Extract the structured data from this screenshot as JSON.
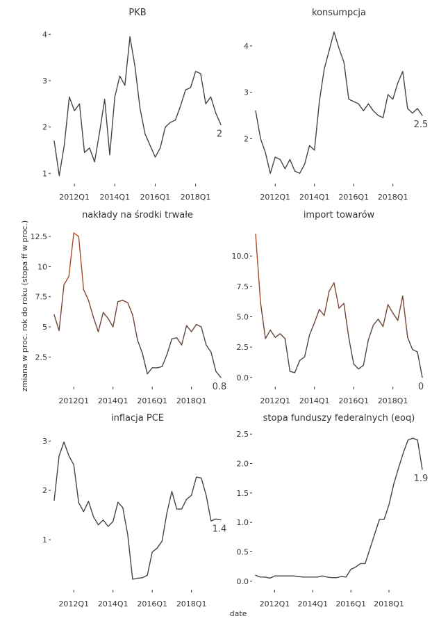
{
  "axis": {
    "xlabel": "date",
    "ylabel": "zmiana w proc. rok do roku (stopa ff w proc.)"
  },
  "chart_data": [
    {
      "type": "line",
      "title": "PKB",
      "x_start": "2011Q1",
      "x_ticks": [
        "2012Q1",
        "2014Q1",
        "2016Q1",
        "2018Q1"
      ],
      "y_ticks": [
        1,
        2,
        3,
        4
      ],
      "ylim": [
        0.9,
        4.2
      ],
      "values": [
        1.7,
        0.95,
        1.6,
        2.65,
        2.35,
        2.5,
        1.45,
        1.55,
        1.25,
        1.9,
        2.6,
        1.4,
        2.65,
        3.1,
        2.9,
        3.95,
        3.3,
        2.4,
        1.85,
        1.6,
        1.35,
        1.55,
        2.0,
        2.1,
        2.15,
        2.45,
        2.8,
        2.85,
        3.2,
        3.15,
        2.5,
        2.65,
        2.3,
        2.05
      ],
      "end_label": "2",
      "color": "#444444",
      "highlight_color": "#444444"
    },
    {
      "type": "line",
      "title": "konsumpcja",
      "x_start": "2011Q1",
      "x_ticks": [
        "2012Q1",
        "2014Q1",
        "2016Q1",
        "2018Q1"
      ],
      "y_ticks": [
        2,
        3,
        4
      ],
      "ylim": [
        1.15,
        4.45
      ],
      "values": [
        2.6,
        2.0,
        1.7,
        1.25,
        1.6,
        1.55,
        1.35,
        1.55,
        1.3,
        1.25,
        1.45,
        1.85,
        1.75,
        2.8,
        3.5,
        3.9,
        4.3,
        3.95,
        3.65,
        2.85,
        2.8,
        2.75,
        2.6,
        2.75,
        2.6,
        2.5,
        2.45,
        2.95,
        2.85,
        3.2,
        3.45,
        2.65,
        2.55,
        2.65,
        2.5
      ],
      "end_label": "2.5",
      "color": "#444444",
      "highlight_color": "#444444"
    },
    {
      "type": "line",
      "title": "nakłady na środki trwałe",
      "x_start": "2011Q1",
      "x_ticks": [
        "2012Q1",
        "2014Q1",
        "2016Q1",
        "2018Q1"
      ],
      "y_ticks": [
        2.5,
        5.0,
        7.5,
        10.0,
        12.5
      ],
      "ylim": [
        0.5,
        13.2
      ],
      "values": [
        6.0,
        4.7,
        8.5,
        9.2,
        12.8,
        12.5,
        8.1,
        7.2,
        5.8,
        4.6,
        6.2,
        5.7,
        5.0,
        7.1,
        7.2,
        7.0,
        6.0,
        3.9,
        2.8,
        1.1,
        1.6,
        1.6,
        1.7,
        2.7,
        4.0,
        4.1,
        3.5,
        5.1,
        4.6,
        5.2,
        5.0,
        3.5,
        2.9,
        1.3,
        0.8
      ],
      "end_label": "0.8",
      "color": "#444444",
      "highlight_color": "#cc4a1a"
    },
    {
      "type": "line",
      "title": "import towarów",
      "x_start": "2011Q1",
      "x_ticks": [
        "2012Q1",
        "2014Q1",
        "2016Q1",
        "2018Q1"
      ],
      "y_ticks": [
        "0.0",
        "2.5",
        "5.0",
        "7.5",
        "10.0"
      ],
      "ylim": [
        -0.3,
        12.3
      ],
      "values": [
        11.8,
        6.2,
        3.2,
        3.9,
        3.3,
        3.6,
        3.2,
        0.5,
        0.4,
        1.4,
        1.7,
        3.5,
        4.5,
        5.6,
        5.1,
        7.1,
        7.8,
        5.7,
        6.1,
        3.3,
        1.1,
        0.7,
        1.0,
        3.1,
        4.3,
        4.8,
        4.2,
        6.0,
        5.3,
        4.7,
        6.7,
        3.3,
        2.3,
        2.1,
        0.0
      ],
      "end_label": "0",
      "color": "#444444",
      "highlight_color": "#cc4a1a"
    },
    {
      "type": "line",
      "title": "inflacja PCE",
      "x_start": "2011Q1",
      "x_ticks": [
        "2012Q1",
        "2014Q1",
        "2016Q1",
        "2018Q1"
      ],
      "y_ticks": [
        1,
        2,
        3
      ],
      "ylim": [
        0.1,
        3.2
      ],
      "values": [
        1.8,
        2.7,
        2.98,
        2.7,
        2.52,
        1.75,
        1.57,
        1.78,
        1.47,
        1.3,
        1.4,
        1.27,
        1.37,
        1.76,
        1.65,
        1.1,
        0.2,
        0.22,
        0.23,
        0.28,
        0.75,
        0.83,
        0.97,
        1.55,
        1.98,
        1.62,
        1.62,
        1.82,
        1.9,
        2.27,
        2.25,
        1.9,
        1.38,
        1.42,
        1.4
      ],
      "end_label": "1.4",
      "color": "#444444",
      "highlight_color": "#444444"
    },
    {
      "type": "line",
      "title": "stopa funduszy federalnych (eoq)",
      "x_start": "2011Q1",
      "x_ticks": [
        "2012Q1",
        "2014Q1",
        "2016Q1",
        "2018Q1"
      ],
      "y_ticks": [
        "0.0",
        "0.5",
        "1.0",
        "1.5",
        "2.0",
        "2.5"
      ],
      "ylim": [
        -0.05,
        2.55
      ],
      "values": [
        0.1,
        0.07,
        0.07,
        0.05,
        0.09,
        0.09,
        0.09,
        0.09,
        0.09,
        0.08,
        0.07,
        0.07,
        0.07,
        0.07,
        0.09,
        0.07,
        0.06,
        0.06,
        0.08,
        0.07,
        0.2,
        0.24,
        0.3,
        0.3,
        0.55,
        0.8,
        1.05,
        1.05,
        1.3,
        1.65,
        1.92,
        2.18,
        2.4,
        2.43,
        2.4,
        1.9
      ],
      "end_label": "1.9",
      "color": "#444444",
      "highlight_color": "#444444"
    }
  ]
}
